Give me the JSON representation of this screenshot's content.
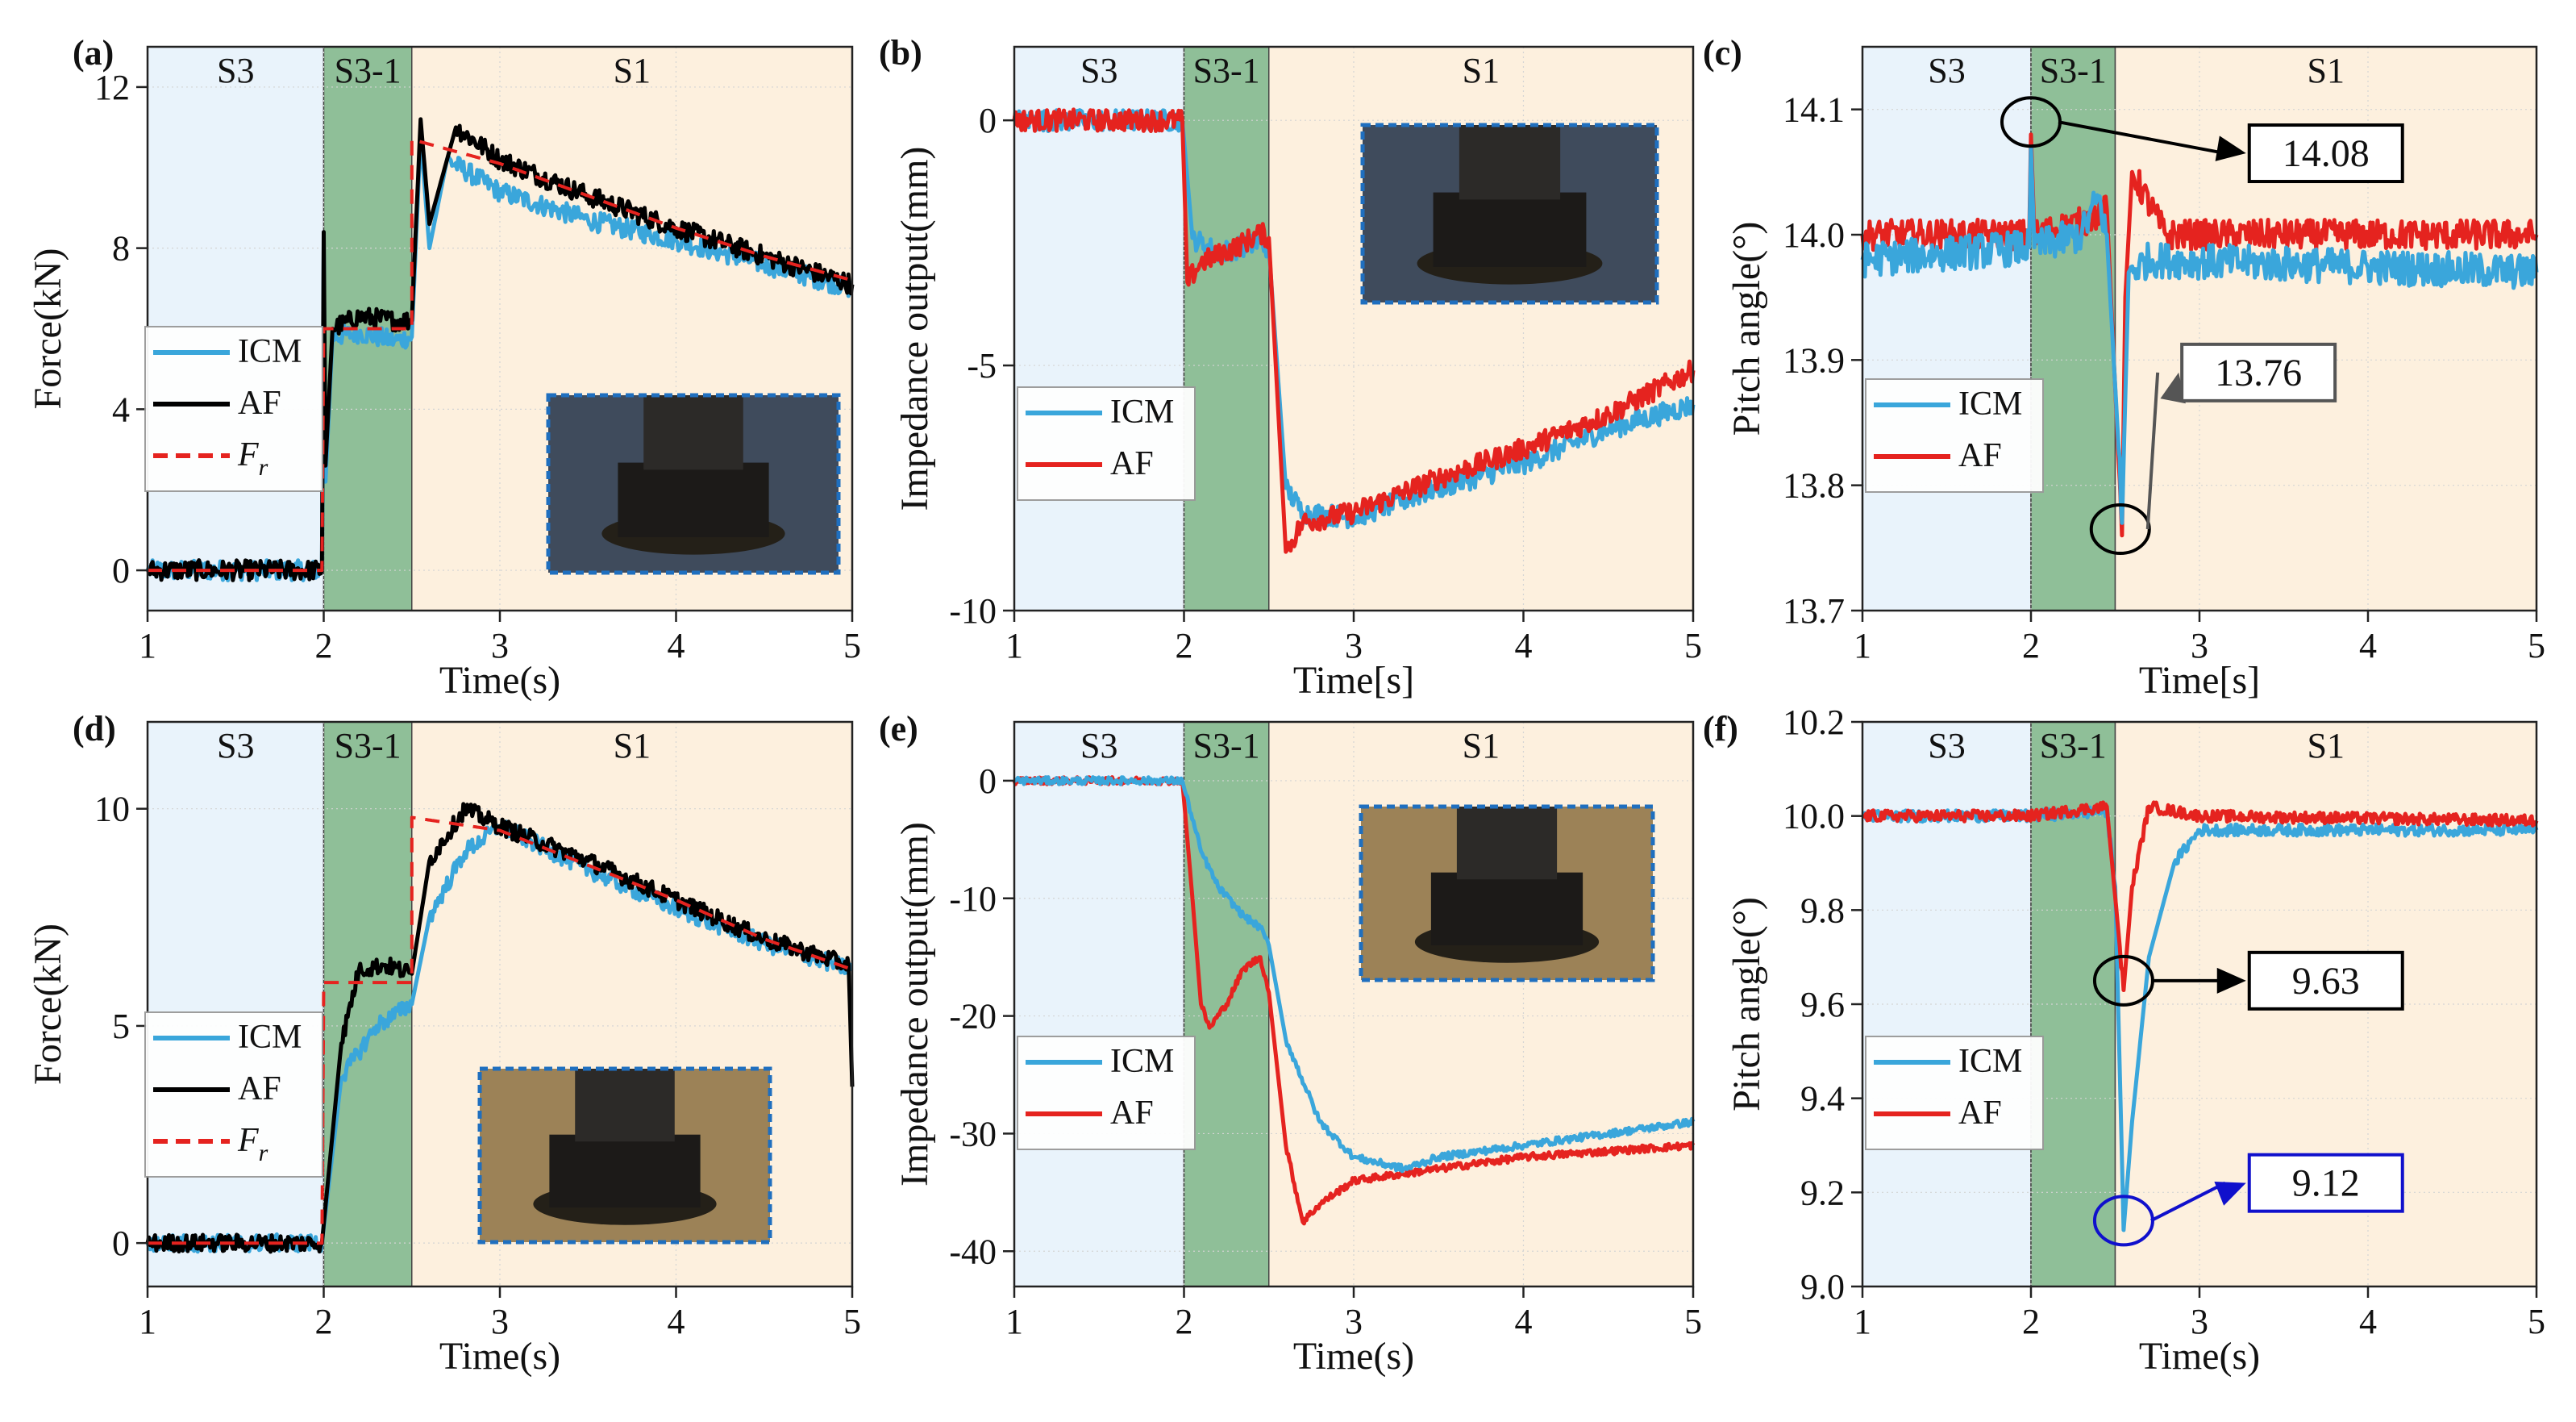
{
  "figure": {
    "colors": {
      "icm": "#3aa6db",
      "af_red": "#e5231f",
      "af_black": "#000000",
      "fr": "#e5231f",
      "stage_s3": "#e9f3fb",
      "stage_s31": "#8fbf98",
      "stage_s1": "#fdf0de"
    },
    "stages": [
      "S3",
      "S3-1",
      "S1"
    ],
    "stage_bounds": [
      1,
      2,
      2.5,
      5
    ]
  },
  "chart_data": [
    {
      "id": "a",
      "panel_label": "(a)",
      "type": "line",
      "xlabel": "Time(s)",
      "ylabel": "Force(kN)",
      "xlim": [
        1,
        5
      ],
      "ylim": [
        -1,
        13
      ],
      "xticks": [
        1,
        2,
        3,
        4,
        5
      ],
      "yticks": [
        0,
        4,
        8,
        12
      ],
      "series": [
        {
          "name": "ICM",
          "color": "#3aa6db",
          "style": "solid",
          "noise": 0.25,
          "points": [
            [
              1,
              0
            ],
            [
              1.99,
              0
            ],
            [
              2.0,
              8.0
            ],
            [
              2.01,
              2.2
            ],
            [
              2.05,
              5.8
            ],
            [
              2.2,
              5.9
            ],
            [
              2.4,
              5.7
            ],
            [
              2.5,
              5.8
            ],
            [
              2.55,
              10.8
            ],
            [
              2.6,
              8.0
            ],
            [
              2.7,
              10.2
            ],
            [
              3.0,
              9.4
            ],
            [
              3.5,
              8.7
            ],
            [
              4.0,
              8.2
            ],
            [
              4.5,
              7.6
            ],
            [
              5.0,
              7.0
            ]
          ]
        },
        {
          "name": "AF",
          "color": "#000000",
          "style": "solid",
          "noise": 0.25,
          "points": [
            [
              1,
              0
            ],
            [
              1.99,
              0
            ],
            [
              2.0,
              8.4
            ],
            [
              2.01,
              2.6
            ],
            [
              2.05,
              6.0
            ],
            [
              2.2,
              6.3
            ],
            [
              2.4,
              6.2
            ],
            [
              2.5,
              6.2
            ],
            [
              2.55,
              11.2
            ],
            [
              2.6,
              8.6
            ],
            [
              2.75,
              11.0
            ],
            [
              3.0,
              10.2
            ],
            [
              3.5,
              9.3
            ],
            [
              4.0,
              8.5
            ],
            [
              4.5,
              7.8
            ],
            [
              5.0,
              7.1
            ]
          ]
        },
        {
          "name": "F_r",
          "color": "#e5231f",
          "style": "dashed",
          "noise": 0,
          "points": [
            [
              1,
              0
            ],
            [
              1.99,
              0
            ],
            [
              2.0,
              6.0
            ],
            [
              2.5,
              6.0
            ],
            [
              2.5,
              10.7
            ],
            [
              3.0,
              10.1
            ],
            [
              3.5,
              9.3
            ],
            [
              4.0,
              8.5
            ],
            [
              4.5,
              7.8
            ],
            [
              5.0,
              7.2
            ]
          ]
        }
      ],
      "legend": [
        "ICM",
        "AF",
        "F"
      ],
      "legend_sub": "r",
      "callouts": []
    },
    {
      "id": "b",
      "panel_label": "(b)",
      "type": "line",
      "xlabel": "Time[s]",
      "ylabel": "Impedance output(mm)",
      "xlim": [
        1,
        5
      ],
      "ylim": [
        -10,
        1.5
      ],
      "xticks": [
        1,
        2,
        3,
        4,
        5
      ],
      "yticks": [
        0,
        -5,
        -10
      ],
      "series": [
        {
          "name": "ICM",
          "color": "#3aa6db",
          "style": "solid",
          "noise": 0.22,
          "points": [
            [
              1,
              0
            ],
            [
              1.99,
              0
            ],
            [
              2.05,
              -2.4
            ],
            [
              2.2,
              -2.7
            ],
            [
              2.45,
              -2.5
            ],
            [
              2.5,
              -2.6
            ],
            [
              2.6,
              -7.5
            ],
            [
              2.7,
              -8.0
            ],
            [
              3.0,
              -8.1
            ],
            [
              3.5,
              -7.5
            ],
            [
              4.0,
              -7.0
            ],
            [
              4.5,
              -6.3
            ],
            [
              5.0,
              -5.8
            ]
          ]
        },
        {
          "name": "AF",
          "color": "#e5231f",
          "style": "solid",
          "noise": 0.22,
          "points": [
            [
              1,
              0
            ],
            [
              1.99,
              0
            ],
            [
              2.02,
              -3.3
            ],
            [
              2.1,
              -2.9
            ],
            [
              2.3,
              -2.6
            ],
            [
              2.45,
              -2.3
            ],
            [
              2.5,
              -2.4
            ],
            [
              2.6,
              -8.8
            ],
            [
              2.7,
              -8.2
            ],
            [
              3.0,
              -8.0
            ],
            [
              3.5,
              -7.3
            ],
            [
              4.0,
              -6.7
            ],
            [
              4.5,
              -6.0
            ],
            [
              5.0,
              -5.1
            ]
          ]
        }
      ],
      "legend": [
        "ICM",
        "AF"
      ],
      "callouts": []
    },
    {
      "id": "c",
      "panel_label": "(c)",
      "type": "line",
      "xlabel": "Time[s]",
      "ylabel": "Pitch angle(°)",
      "xlim": [
        1,
        5
      ],
      "ylim": [
        13.7,
        14.15
      ],
      "xticks": [
        1,
        2,
        3,
        4,
        5
      ],
      "yticks": [
        13.7,
        13.8,
        13.9,
        14.0,
        14.1
      ],
      "series": [
        {
          "name": "AF",
          "color": "#e5231f",
          "style": "solid",
          "noise": 0.012,
          "points": [
            [
              1,
              14.0
            ],
            [
              1.99,
              14.0
            ],
            [
              2.0,
              14.08
            ],
            [
              2.02,
              14.0
            ],
            [
              2.3,
              14.01
            ],
            [
              2.45,
              14.02
            ],
            [
              2.52,
              13.82
            ],
            [
              2.54,
              13.76
            ],
            [
              2.56,
              13.95
            ],
            [
              2.6,
              14.05
            ],
            [
              2.8,
              14.0
            ],
            [
              5.0,
              14.0
            ]
          ]
        },
        {
          "name": "ICM",
          "color": "#3aa6db",
          "style": "solid",
          "noise": 0.014,
          "points": [
            [
              1,
              13.98
            ],
            [
              1.99,
              13.99
            ],
            [
              2.0,
              14.07
            ],
            [
              2.02,
              13.99
            ],
            [
              2.3,
              14.0
            ],
            [
              2.4,
              14.03
            ],
            [
              2.45,
              14.0
            ],
            [
              2.52,
              13.83
            ],
            [
              2.54,
              13.77
            ],
            [
              2.58,
              13.97
            ],
            [
              2.7,
              13.98
            ],
            [
              5.0,
              13.97
            ]
          ]
        }
      ],
      "legend": [
        "ICM",
        "AF"
      ],
      "callouts": [
        {
          "x": 2.0,
          "y": 14.09,
          "text": "14.08",
          "box_x": 3.75,
          "box_y": 14.065,
          "color": "#000000",
          "ellipse": "#000000"
        },
        {
          "x": 2.53,
          "y": 13.765,
          "text": "13.76",
          "box_x": 3.35,
          "box_y": 13.89,
          "color": "#555555",
          "ellipse": "#000000"
        }
      ]
    },
    {
      "id": "d",
      "panel_label": "(d)",
      "type": "line",
      "xlabel": "Time(s)",
      "ylabel": "Force(kN)",
      "xlim": [
        1,
        5
      ],
      "ylim": [
        -1,
        12
      ],
      "xticks": [
        1,
        2,
        3,
        4,
        5
      ],
      "yticks": [
        0,
        5,
        10
      ],
      "series": [
        {
          "name": "ICM",
          "color": "#3aa6db",
          "style": "solid",
          "noise": 0.2,
          "points": [
            [
              1,
              0
            ],
            [
              1.99,
              0
            ],
            [
              2.1,
              3.8
            ],
            [
              2.3,
              5.0
            ],
            [
              2.5,
              5.5
            ],
            [
              2.6,
              7.5
            ],
            [
              2.8,
              9.0
            ],
            [
              3.0,
              9.6
            ],
            [
              3.5,
              8.6
            ],
            [
              4.0,
              7.7
            ],
            [
              4.5,
              6.9
            ],
            [
              5.0,
              6.3
            ]
          ]
        },
        {
          "name": "AF",
          "color": "#000000",
          "style": "solid",
          "noise": 0.2,
          "points": [
            [
              1,
              0
            ],
            [
              1.99,
              0
            ],
            [
              2.1,
              4.6
            ],
            [
              2.2,
              6.3
            ],
            [
              2.35,
              6.4
            ],
            [
              2.5,
              6.2
            ],
            [
              2.6,
              8.8
            ],
            [
              2.8,
              10.0
            ],
            [
              3.0,
              9.6
            ],
            [
              3.5,
              8.8
            ],
            [
              4.0,
              7.9
            ],
            [
              4.5,
              7.0
            ],
            [
              4.98,
              6.4
            ],
            [
              5.0,
              3.6
            ]
          ]
        },
        {
          "name": "F_r",
          "color": "#e5231f",
          "style": "dashed",
          "noise": 0,
          "points": [
            [
              1,
              0
            ],
            [
              1.99,
              0
            ],
            [
              2.0,
              6.0
            ],
            [
              2.5,
              6.0
            ],
            [
              2.5,
              9.8
            ],
            [
              3.0,
              9.5
            ],
            [
              3.5,
              8.7
            ],
            [
              4.0,
              7.9
            ],
            [
              4.5,
              7.0
            ],
            [
              5.0,
              6.3
            ]
          ]
        }
      ],
      "legend": [
        "ICM",
        "AF",
        "F"
      ],
      "legend_sub": "r",
      "callouts": []
    },
    {
      "id": "e",
      "panel_label": "(e)",
      "type": "line",
      "xlabel": "Time(s)",
      "ylabel": "Impedance output(mm)",
      "xlim": [
        1,
        5
      ],
      "ylim": [
        -43,
        5
      ],
      "xticks": [
        1,
        2,
        3,
        4,
        5
      ],
      "yticks": [
        0,
        -10,
        -20,
        -30,
        -40
      ],
      "series": [
        {
          "name": "AF",
          "color": "#e5231f",
          "style": "solid",
          "noise": 0.3,
          "points": [
            [
              1,
              0
            ],
            [
              1.99,
              0
            ],
            [
              2.05,
              -10
            ],
            [
              2.1,
              -19
            ],
            [
              2.15,
              -21
            ],
            [
              2.25,
              -19
            ],
            [
              2.35,
              -16
            ],
            [
              2.45,
              -15
            ],
            [
              2.5,
              -18
            ],
            [
              2.6,
              -31
            ],
            [
              2.7,
              -37.5
            ],
            [
              2.8,
              -36
            ],
            [
              3.0,
              -34
            ],
            [
              3.5,
              -33
            ],
            [
              4.0,
              -32
            ],
            [
              4.5,
              -31.5
            ],
            [
              5.0,
              -31
            ]
          ]
        },
        {
          "name": "ICM",
          "color": "#3aa6db",
          "style": "solid",
          "noise": 0.3,
          "points": [
            [
              1,
              0
            ],
            [
              1.99,
              0
            ],
            [
              2.1,
              -6
            ],
            [
              2.2,
              -9
            ],
            [
              2.35,
              -11.5
            ],
            [
              2.45,
              -12.5
            ],
            [
              2.5,
              -14
            ],
            [
              2.6,
              -22
            ],
            [
              2.8,
              -29
            ],
            [
              3.0,
              -32
            ],
            [
              3.3,
              -33
            ],
            [
              3.5,
              -32
            ],
            [
              4.0,
              -31
            ],
            [
              4.5,
              -30
            ],
            [
              5.0,
              -29
            ]
          ]
        }
      ],
      "legend": [
        "ICM",
        "AF"
      ],
      "callouts": []
    },
    {
      "id": "f",
      "panel_label": "(f)",
      "type": "line",
      "xlabel": "Time(s)",
      "ylabel": "Pitch angle(°)",
      "xlim": [
        1,
        5
      ],
      "ylim": [
        9.0,
        10.2
      ],
      "xticks": [
        1,
        2,
        3,
        4,
        5
      ],
      "yticks": [
        9.0,
        9.2,
        9.4,
        9.6,
        9.8,
        10.0,
        10.2
      ],
      "series": [
        {
          "name": "ICM",
          "color": "#3aa6db",
          "style": "solid",
          "noise": 0.012,
          "points": [
            [
              1,
              10.0
            ],
            [
              1.99,
              10.0
            ],
            [
              2.45,
              10.01
            ],
            [
              2.5,
              9.85
            ],
            [
              2.55,
              9.12
            ],
            [
              2.6,
              9.35
            ],
            [
              2.7,
              9.7
            ],
            [
              2.85,
              9.9
            ],
            [
              3.0,
              9.97
            ],
            [
              5.0,
              9.97
            ]
          ]
        },
        {
          "name": "AF",
          "color": "#e5231f",
          "style": "solid",
          "noise": 0.012,
          "points": [
            [
              1,
              10.0
            ],
            [
              1.99,
              10.0
            ],
            [
              2.45,
              10.02
            ],
            [
              2.52,
              9.75
            ],
            [
              2.55,
              9.63
            ],
            [
              2.6,
              9.85
            ],
            [
              2.7,
              10.02
            ],
            [
              3.0,
              10.0
            ],
            [
              5.0,
              9.99
            ]
          ]
        }
      ],
      "legend": [
        "ICM",
        "AF"
      ],
      "callouts": [
        {
          "x": 2.55,
          "y": 9.65,
          "text": "9.63",
          "box_x": 3.75,
          "box_y": 9.65,
          "color": "#000000",
          "ellipse": "#000000"
        },
        {
          "x": 2.55,
          "y": 9.14,
          "text": "9.12",
          "box_x": 3.75,
          "box_y": 9.22,
          "color": "#1010cc",
          "ellipse": "#1010cc"
        }
      ]
    }
  ]
}
